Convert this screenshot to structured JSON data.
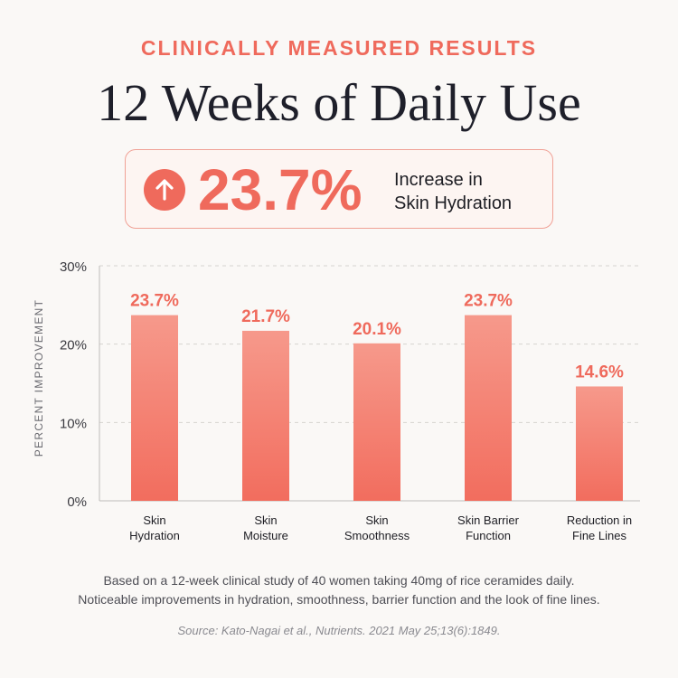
{
  "eyebrow": "CLINICALLY MEASURED RESULTS",
  "headline": "12 Weeks of Daily Use",
  "callout": {
    "icon": "arrow-up-circle-icon",
    "value": "23.7%",
    "line1": "Increase in",
    "line2": "Skin Hydration"
  },
  "colors": {
    "accent": "#ef6a5c",
    "bar_top": "#f6998b",
    "bar_bottom": "#f26d5e"
  },
  "chart_data": {
    "type": "bar",
    "ylabel": "PERCENT IMPROVEMENT",
    "ylim": [
      0,
      30
    ],
    "yticks": [
      0,
      10,
      20,
      30
    ],
    "ytick_labels": [
      "0%",
      "10%",
      "20%",
      "30%"
    ],
    "grid": true,
    "categories": [
      [
        "Skin",
        "Hydration"
      ],
      [
        "Skin",
        "Moisture"
      ],
      [
        "Skin",
        "Smoothness"
      ],
      [
        "Skin Barrier",
        "Function"
      ],
      [
        "Reduction in",
        "Fine Lines"
      ]
    ],
    "values": [
      23.7,
      21.7,
      20.1,
      23.7,
      14.6
    ],
    "data_labels": [
      "23.7%",
      "21.7%",
      "20.1%",
      "23.7%",
      "14.6%"
    ]
  },
  "footnote": {
    "line1": "Based on a 12-week clinical study of 40 women taking 40mg of rice ceramides daily.",
    "line2": "Noticeable improvements in hydration, smoothness, barrier function and the look of fine lines."
  },
  "source": "Source: Kato-Nagai et al., Nutrients. 2021 May 25;13(6):1849."
}
